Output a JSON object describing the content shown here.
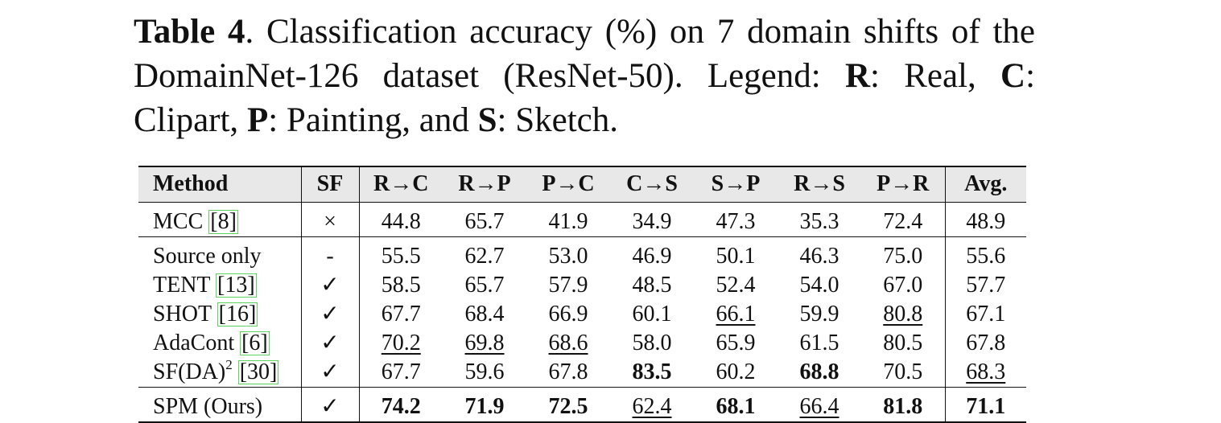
{
  "caption": {
    "label": "Table 4",
    "text_1": ".  Classification accuracy (%) on 7 domain shifts of the DomainNet-126 dataset (ResNet-50).  Legend: ",
    "R": "R",
    "R_desc": ": Real, ",
    "C": "C",
    "C_desc": ": Clipart, ",
    "P": "P",
    "P_desc": ": Painting, and ",
    "S": "S",
    "S_desc": ": Sketch."
  },
  "table": {
    "headers": [
      "Method",
      "SF",
      "R→C",
      "R→P",
      "P→C",
      "C→S",
      "S→P",
      "R→S",
      "P→R",
      "Avg."
    ],
    "rows": [
      {
        "method": "MCC",
        "ref": "[8]",
        "sf": "×",
        "values": [
          "44.8",
          "65.7",
          "41.9",
          "34.9",
          "47.3",
          "35.3",
          "72.4",
          "48.9"
        ],
        "bold": [],
        "underline": []
      },
      {
        "method": "Source only",
        "ref": "",
        "sf": "-",
        "values": [
          "55.5",
          "62.7",
          "53.0",
          "46.9",
          "50.1",
          "46.3",
          "75.0",
          "55.6"
        ],
        "bold": [],
        "underline": []
      },
      {
        "method": "TENT",
        "ref": "[13]",
        "sf": "✓",
        "values": [
          "58.5",
          "65.7",
          "57.9",
          "48.5",
          "52.4",
          "54.0",
          "67.0",
          "57.7"
        ],
        "bold": [],
        "underline": []
      },
      {
        "method": "SHOT",
        "ref": "[16]",
        "sf": "✓",
        "values": [
          "67.7",
          "68.4",
          "66.9",
          "60.1",
          "66.1",
          "59.9",
          "80.8",
          "67.1"
        ],
        "bold": [],
        "underline": [
          4,
          6
        ]
      },
      {
        "method": "AdaCont",
        "ref": "[6]",
        "sf": "✓",
        "values": [
          "70.2",
          "69.8",
          "68.6",
          "58.0",
          "65.9",
          "61.5",
          "80.5",
          "67.8"
        ],
        "bold": [],
        "underline": [
          0,
          1,
          2
        ]
      },
      {
        "method": "SF(DA)",
        "sup": "2",
        "ref": "[30]",
        "sf": "✓",
        "values": [
          "67.7",
          "59.6",
          "67.8",
          "83.5",
          "60.2",
          "68.8",
          "70.5",
          "68.3"
        ],
        "bold": [
          3,
          5
        ],
        "underline": [
          7
        ]
      },
      {
        "method": "SPM (Ours)",
        "ref": "",
        "sf": "✓",
        "values": [
          "74.2",
          "71.9",
          "72.5",
          "62.4",
          "68.1",
          "66.4",
          "81.8",
          "71.1"
        ],
        "bold": [
          0,
          1,
          2,
          4,
          6,
          7
        ],
        "underline": [
          3,
          5
        ]
      }
    ]
  }
}
